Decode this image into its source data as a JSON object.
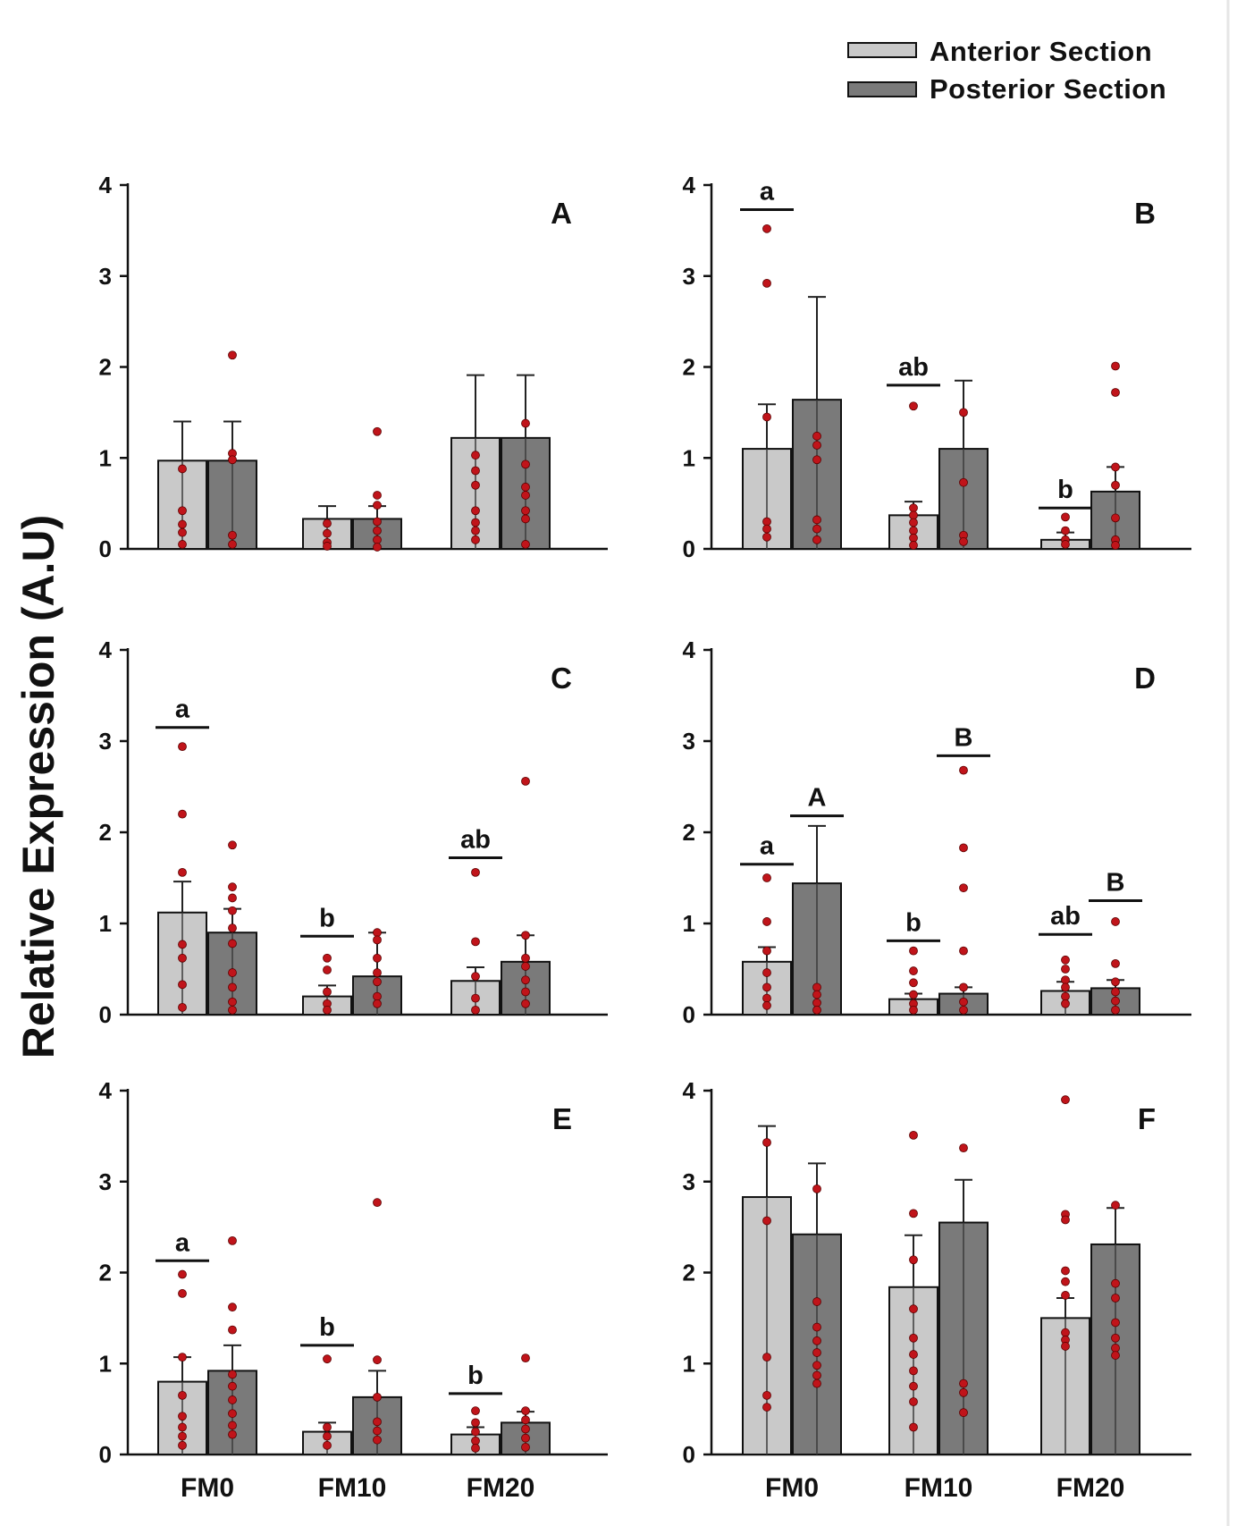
{
  "legend": [
    {
      "label": "Anterior Section",
      "color": "#c9c9c9"
    },
    {
      "label": "Posterior Section",
      "color": "#7a7a7a"
    }
  ],
  "y_axis_label": "Relative Expression (A.U)",
  "colors": {
    "anterior": "#c9c9c9",
    "posterior": "#7a7a7a",
    "dot": "#c0141a",
    "axis": "#111111"
  },
  "chart_data": [
    {
      "type": "bar",
      "panel": "A",
      "categories": [
        "FM0",
        "FM10",
        "FM20"
      ],
      "ylim": [
        0,
        4
      ],
      "yticks": [
        "0",
        "1",
        "2",
        "3",
        "4"
      ],
      "series": [
        {
          "name": "Anterior Section",
          "values": [
            0.97,
            0.33,
            1.22
          ],
          "errors": [
            0.43,
            0.14,
            0.69
          ],
          "points": [
            [
              0.88,
              0.42,
              0.27,
              0.18,
              0.05
            ],
            [
              0.28,
              0.17,
              0.07,
              0.03
            ],
            [
              1.03,
              0.86,
              0.7,
              0.42,
              0.29,
              0.2,
              0.1
            ]
          ]
        },
        {
          "name": "Posterior Section",
          "values": [
            0.97,
            0.33,
            1.22
          ],
          "errors": [
            0.43,
            0.14,
            0.69
          ],
          "points": [
            [
              2.13,
              1.05,
              0.98,
              0.15,
              0.05
            ],
            [
              1.29,
              0.59,
              0.48,
              0.3,
              0.2,
              0.1,
              0.02
            ],
            [
              1.38,
              0.93,
              0.68,
              0.59,
              0.42,
              0.33,
              0.05
            ]
          ]
        }
      ],
      "annotations": []
    },
    {
      "type": "bar",
      "panel": "B",
      "categories": [
        "FM0",
        "FM10",
        "FM20"
      ],
      "ylim": [
        0,
        4
      ],
      "yticks": [
        "0",
        "1",
        "2",
        "3",
        "4"
      ],
      "series": [
        {
          "name": "Anterior Section",
          "values": [
            1.1,
            0.37,
            0.1
          ],
          "errors": [
            0.49,
            0.15,
            0.08
          ],
          "points": [
            [
              3.52,
              2.92,
              1.45,
              0.3,
              0.22,
              0.13
            ],
            [
              1.57,
              0.45,
              0.37,
              0.29,
              0.2,
              0.12,
              0.04
            ],
            [
              0.35,
              0.2,
              0.1,
              0.05
            ]
          ]
        },
        {
          "name": "Posterior Section",
          "values": [
            1.64,
            1.1,
            0.63
          ],
          "errors": [
            1.13,
            0.75,
            0.27
          ],
          "points": [
            [
              1.24,
              1.14,
              0.98,
              0.32,
              0.22,
              0.1
            ],
            [
              1.5,
              0.73,
              0.15,
              0.08
            ],
            [
              2.01,
              1.72,
              0.9,
              0.7,
              0.34,
              0.1,
              0.04
            ]
          ]
        }
      ],
      "annotations": [
        {
          "series": 0,
          "category": 0,
          "label": "a",
          "y": 3.73
        },
        {
          "series": 0,
          "category": 1,
          "label": "ab",
          "y": 1.8
        },
        {
          "series": 0,
          "category": 2,
          "label": "b",
          "y": 0.45
        }
      ]
    },
    {
      "type": "bar",
      "panel": "C",
      "categories": [
        "FM0",
        "FM10",
        "FM20"
      ],
      "ylim": [
        0,
        4
      ],
      "yticks": [
        "0",
        "1",
        "2",
        "3",
        "4"
      ],
      "series": [
        {
          "name": "Anterior Section",
          "values": [
            1.12,
            0.2,
            0.37
          ],
          "errors": [
            0.34,
            0.12,
            0.15
          ],
          "points": [
            [
              2.94,
              2.2,
              1.56,
              0.77,
              0.62,
              0.33,
              0.08
            ],
            [
              0.62,
              0.49,
              0.25,
              0.12,
              0.05
            ],
            [
              1.56,
              0.8,
              0.42,
              0.18,
              0.05
            ]
          ]
        },
        {
          "name": "Posterior Section",
          "values": [
            0.9,
            0.42,
            0.58
          ],
          "errors": [
            0.26,
            0.48,
            0.29
          ],
          "points": [
            [
              1.86,
              1.4,
              1.28,
              1.14,
              0.95,
              0.78,
              0.46,
              0.3,
              0.14,
              0.05
            ],
            [
              0.9,
              0.82,
              0.62,
              0.46,
              0.36,
              0.2,
              0.12
            ],
            [
              2.56,
              0.87,
              0.62,
              0.53,
              0.38,
              0.25,
              0.12
            ]
          ]
        }
      ],
      "annotations": [
        {
          "series": 0,
          "category": 0,
          "label": "a",
          "y": 3.15
        },
        {
          "series": 0,
          "category": 1,
          "label": "b",
          "y": 0.86
        },
        {
          "series": 0,
          "category": 2,
          "label": "ab",
          "y": 1.72
        }
      ]
    },
    {
      "type": "bar",
      "panel": "D",
      "categories": [
        "FM0",
        "FM10",
        "FM20"
      ],
      "ylim": [
        0,
        4
      ],
      "yticks": [
        "0",
        "1",
        "2",
        "3",
        "4"
      ],
      "series": [
        {
          "name": "Anterior Section",
          "values": [
            0.58,
            0.17,
            0.26
          ],
          "errors": [
            0.16,
            0.06,
            0.1
          ],
          "points": [
            [
              1.5,
              1.02,
              0.7,
              0.46,
              0.3,
              0.18,
              0.1
            ],
            [
              0.7,
              0.48,
              0.35,
              0.22,
              0.12,
              0.05
            ],
            [
              0.6,
              0.5,
              0.38,
              0.3,
              0.2,
              0.12
            ]
          ]
        },
        {
          "name": "Posterior Section",
          "values": [
            1.44,
            0.23,
            0.29
          ],
          "errors": [
            0.63,
            0.07,
            0.09
          ],
          "points": [
            [
              0.3,
              0.22,
              0.13,
              0.05
            ],
            [
              2.68,
              1.83,
              1.39,
              0.7,
              0.3,
              0.14,
              0.05
            ],
            [
              1.02,
              0.56,
              0.36,
              0.25,
              0.15,
              0.05
            ]
          ]
        }
      ],
      "annotations": [
        {
          "series": 0,
          "category": 0,
          "label": "a",
          "y": 1.65
        },
        {
          "series": 1,
          "category": 0,
          "label": "A",
          "y": 2.18
        },
        {
          "series": 0,
          "category": 1,
          "label": "b",
          "y": 0.81
        },
        {
          "series": 1,
          "category": 1,
          "label": "B",
          "y": 2.84
        },
        {
          "series": 0,
          "category": 2,
          "label": "ab",
          "y": 0.88
        },
        {
          "series": 1,
          "category": 2,
          "label": "B",
          "y": 1.25
        }
      ]
    },
    {
      "type": "bar",
      "panel": "E",
      "categories": [
        "FM0",
        "FM10",
        "FM20"
      ],
      "ylim": [
        0,
        4
      ],
      "yticks": [
        "0",
        "1",
        "2",
        "3",
        "4"
      ],
      "series": [
        {
          "name": "Anterior Section",
          "values": [
            0.8,
            0.25,
            0.22
          ],
          "errors": [
            0.27,
            0.1,
            0.08
          ],
          "points": [
            [
              1.98,
              1.77,
              1.07,
              0.65,
              0.42,
              0.3,
              0.2,
              0.1
            ],
            [
              1.05,
              0.3,
              0.2,
              0.1
            ],
            [
              0.48,
              0.35,
              0.25,
              0.15,
              0.07
            ]
          ]
        },
        {
          "name": "Posterior Section",
          "values": [
            0.92,
            0.63,
            0.35
          ],
          "errors": [
            0.28,
            0.29,
            0.12
          ],
          "points": [
            [
              2.35,
              1.62,
              1.37,
              0.88,
              0.75,
              0.6,
              0.45,
              0.32,
              0.22
            ],
            [
              2.77,
              1.04,
              0.63,
              0.36,
              0.26,
              0.16
            ],
            [
              1.06,
              0.48,
              0.38,
              0.28,
              0.18,
              0.08
            ]
          ]
        }
      ],
      "annotations": [
        {
          "series": 0,
          "category": 0,
          "label": "a",
          "y": 2.13
        },
        {
          "series": 0,
          "category": 1,
          "label": "b",
          "y": 1.2
        },
        {
          "series": 0,
          "category": 2,
          "label": "b",
          "y": 0.67
        }
      ]
    },
    {
      "type": "bar",
      "panel": "F",
      "categories": [
        "FM0",
        "FM10",
        "FM20"
      ],
      "ylim": [
        0,
        4
      ],
      "yticks": [
        "0",
        "1",
        "2",
        "3",
        "4"
      ],
      "series": [
        {
          "name": "Anterior Section",
          "values": [
            2.83,
            1.84,
            1.5
          ],
          "errors": [
            0.78,
            0.57,
            0.22
          ],
          "points": [
            [
              3.43,
              2.57,
              1.07,
              0.65,
              0.52
            ],
            [
              3.51,
              2.65,
              2.14,
              1.6,
              1.28,
              1.1,
              0.92,
              0.75,
              0.58,
              0.3
            ],
            [
              3.9,
              2.64,
              2.58,
              2.02,
              1.9,
              1.75,
              1.34,
              1.26,
              1.19
            ]
          ]
        },
        {
          "name": "Posterior Section",
          "values": [
            2.42,
            2.55,
            2.31
          ],
          "errors": [
            0.78,
            0.47,
            0.4
          ],
          "points": [
            [
              2.92,
              1.68,
              1.4,
              1.25,
              1.12,
              0.98,
              0.87,
              0.78
            ],
            [
              3.37,
              0.78,
              0.68,
              0.46
            ],
            [
              2.74,
              1.88,
              1.72,
              1.45,
              1.28,
              1.17,
              1.09
            ]
          ]
        }
      ],
      "annotations": []
    }
  ],
  "x_tick_labels": [
    "FM0",
    "FM10",
    "FM20"
  ]
}
